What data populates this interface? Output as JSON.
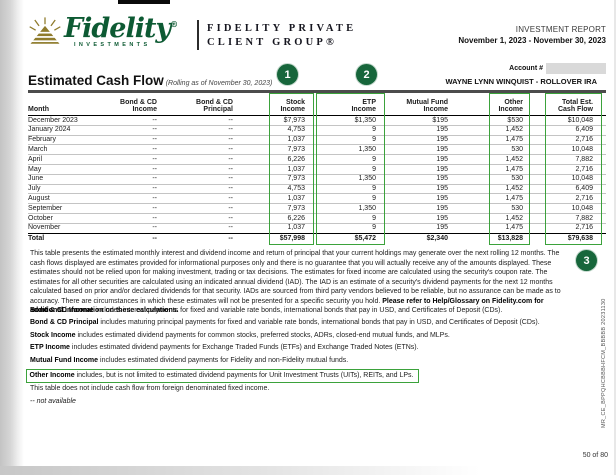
{
  "header": {
    "brand": "Fidelity",
    "brand_sub": "INVESTMENTS",
    "group_name": "FIDELITY PRIVATE\nCLIENT GROUP®",
    "report_label": "INVESTMENT REPORT",
    "report_period": "November 1, 2023 - November 30, 2023"
  },
  "account": {
    "label": "Account #",
    "name": "WAYNE LYNN WINQUIST - ROLLOVER IRA"
  },
  "title": {
    "main": "Estimated Cash Flow",
    "qualifier": " (Rolling as of November 30, 2023)"
  },
  "annotations": {
    "circle1": "1",
    "circle2": "2",
    "circle3": "3"
  },
  "table": {
    "columns": [
      "Month",
      "Bond & CD\nIncome",
      "Bond & CD\nPrincipal",
      "Stock\nIncome",
      "ETP\nIncome",
      "Mutual Fund\nIncome",
      "Other\nIncome",
      "Total Est.\nCash Flow"
    ],
    "rows": [
      [
        "December 2023",
        "--",
        "--",
        "$7,973",
        "$1,350",
        "$195",
        "$530",
        "$10,048"
      ],
      [
        "January 2024",
        "--",
        "--",
        "4,753",
        "9",
        "195",
        "1,452",
        "6,409"
      ],
      [
        "February",
        "--",
        "--",
        "1,037",
        "9",
        "195",
        "1,475",
        "2,716"
      ],
      [
        "March",
        "--",
        "--",
        "7,973",
        "1,350",
        "195",
        "530",
        "10,048"
      ],
      [
        "April",
        "--",
        "--",
        "6,226",
        "9",
        "195",
        "1,452",
        "7,882"
      ],
      [
        "May",
        "--",
        "--",
        "1,037",
        "9",
        "195",
        "1,475",
        "2,716"
      ],
      [
        "June",
        "--",
        "--",
        "7,973",
        "1,350",
        "195",
        "530",
        "10,048"
      ],
      [
        "July",
        "--",
        "--",
        "4,753",
        "9",
        "195",
        "1,452",
        "6,409"
      ],
      [
        "August",
        "--",
        "--",
        "1,037",
        "9",
        "195",
        "1,475",
        "2,716"
      ],
      [
        "September",
        "--",
        "--",
        "7,973",
        "1,350",
        "195",
        "530",
        "10,048"
      ],
      [
        "October",
        "--",
        "--",
        "6,226",
        "9",
        "195",
        "1,452",
        "7,882"
      ],
      [
        "November",
        "--",
        "--",
        "1,037",
        "9",
        "195",
        "1,475",
        "2,716"
      ]
    ],
    "total": [
      "Total",
      "--",
      "--",
      "$57,998",
      "$5,472",
      "$2,340",
      "$13,828",
      "$79,638"
    ]
  },
  "paragraph": {
    "body": "This table presents the estimated monthly interest and dividend income and return of principal that your current holdings may generate over the next rolling 12 months. The cash flows displayed are estimates provided for informational purposes only and there is no guarantee that you will actually receive any of the amounts displayed. These estimates should not be relied upon for making investment, trading or tax decisions. The estimates for fixed income are calculated using the security's coupon rate. The estimates for all other securities are calculated using an indicated annual dividend (IAD). The IAD is an estimate of a security's dividend payments for the next 12 months calculated based on prior and/or declared dividends for that security. IADs are sourced from third party vendors believed to be reliable, but no assurance can be made as to accuracy. There are circumstances in which these estimates will not be presented for a specific security you hold. ",
    "bold_tail": "Please refer to Help/Glossary on Fidelity.com for additional information on these calculations."
  },
  "footnotes": [
    {
      "bold": "Bond & CD Income",
      "rest": " includes interest payments for fixed and variable rate bonds, international bonds that pay in USD, and Certificates of Deposit (CDs).",
      "boxed": false,
      "italic": false
    },
    {
      "bold": "Bond & CD Principal",
      "rest": " includes maturing principal payments for fixed and variable rate bonds, international bonds that pay in USD, and Certificates of Deposit (CDs).",
      "boxed": false,
      "italic": false
    },
    {
      "bold": "Stock Income",
      "rest": " includes estimated dividend payments for common stocks, preferred stocks, ADRs, closed-end mutual funds, and MLPs.",
      "boxed": false,
      "italic": false
    },
    {
      "bold": "ETP Income",
      "rest": " includes estimated dividend payments for Exchange Traded Funds (ETFs) and Exchange Traded Notes (ETNs).",
      "boxed": false,
      "italic": false
    },
    {
      "bold": "Mutual Fund Income",
      "rest": " includes estimated dividend payments for Fidelity and non-Fidelity mutual funds.",
      "boxed": false,
      "italic": false
    },
    {
      "bold": "Other Income",
      "rest": " includes, but is not limited to estimated dividend payments for Unit Investment Trusts (UITs), REITs, and LPs.",
      "boxed": true,
      "italic": false
    },
    {
      "bold": "",
      "rest": "This table does not include cash flow from foreign denominated fixed income.",
      "boxed": false,
      "italic": false
    },
    {
      "bold": "",
      "rest": "-- not available",
      "boxed": false,
      "italic": true
    }
  ],
  "sidebar_code": "MR_CE_BPPQHCBBBHFCM_BBBBB 20231130",
  "page_number": "50 of 80",
  "colors": {
    "highlight_green": "#3ba23b",
    "circle_green": "#17663b",
    "logo_green": "#0d5a33"
  }
}
